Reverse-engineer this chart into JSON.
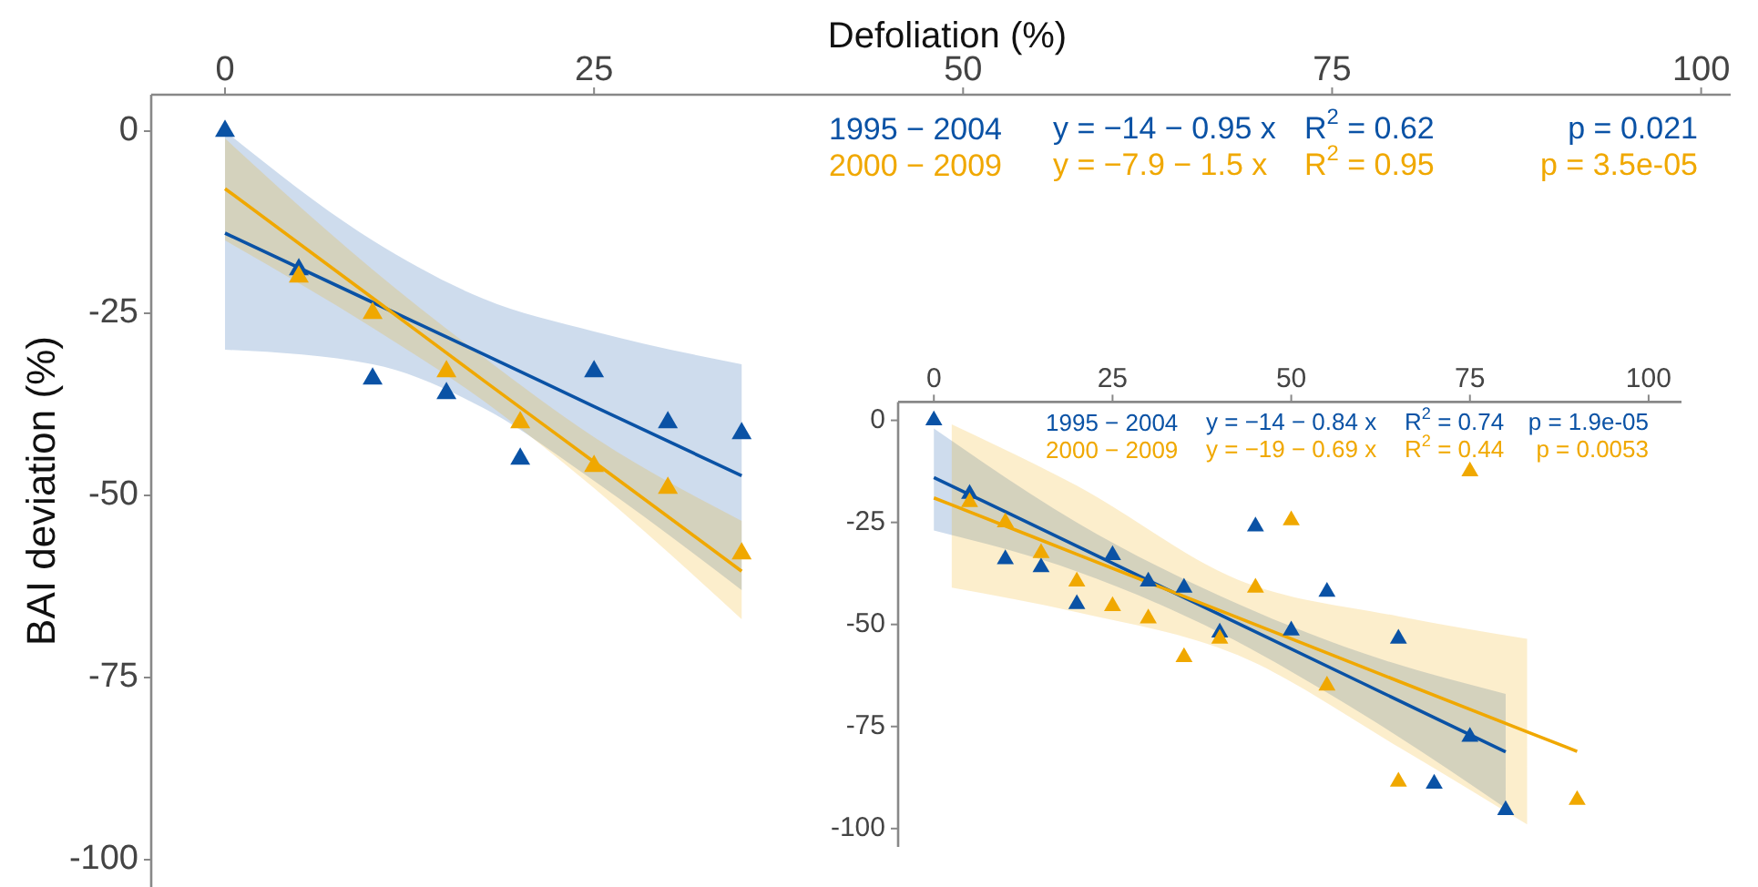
{
  "chart_data": [
    {
      "type": "scatter",
      "xlabel": "Defoliation (%)",
      "ylabel": "BAI deviation (%)",
      "xlim": [
        -5,
        102
      ],
      "xticks": [
        0,
        25,
        50,
        75,
        100
      ],
      "ylim": [
        -104,
        5
      ],
      "yticks": [
        0,
        -25,
        -50,
        -75,
        -100
      ],
      "grid": false,
      "series": [
        {
          "name": "1995 − 2004",
          "marker": "triangle",
          "color": "#0a52a5",
          "x": [
            0,
            5,
            10,
            15,
            20,
            25,
            30,
            35
          ],
          "values": [
            0,
            -19,
            -34,
            -36,
            -45,
            -33,
            -40,
            -41.5
          ]
        },
        {
          "name": "2000 − 2009",
          "marker": "triangle",
          "color": "#f0a800",
          "x": [
            5,
            10,
            15,
            20,
            25,
            30,
            35
          ],
          "values": [
            -20,
            -25,
            -33,
            -40,
            -46,
            -49,
            -58
          ]
        },
        {
          "type": "line",
          "color": "#0a52a5",
          "x": [
            0,
            10,
            17.5,
            25,
            35
          ],
          "values": [
            -14,
            -23.5,
            -30.6,
            -37.8,
            -47.3
          ],
          "lower": [
            -30,
            -32,
            -38,
            -48,
            -63
          ],
          "upper": [
            0,
            -15,
            -23,
            -27.5,
            -32
          ]
        },
        {
          "type": "line",
          "color": "#f0a800",
          "x": [
            0,
            10,
            17.5,
            25,
            35
          ],
          "values": [
            -7.9,
            -22.9,
            -34.2,
            -45.4,
            -60.4
          ],
          "lower": [
            -15,
            -27,
            -37,
            -49,
            -67
          ],
          "upper": [
            -1,
            -19,
            -31,
            -42,
            -53.5
          ]
        }
      ],
      "annotations": [
        "y = −14 − 0.95 x",
        "R$^{2}$ = 0.62",
        "p = 0.021",
        "y = −7.9 − 1.5 x",
        "R$^{2}$ = 0.95",
        "p = 3.5e-05"
      ]
    },
    {
      "type": "scatter",
      "xlim": [
        -5,
        104.6
      ],
      "xticks": [
        0,
        25,
        50,
        75,
        100
      ],
      "ylim": [
        -104.5,
        4.5
      ],
      "yticks": [
        0,
        -25,
        -50,
        -75,
        -100
      ],
      "grid": false,
      "series": [
        {
          "name": "1995 − 2004",
          "marker": "triangle",
          "color": "#0a52a5",
          "x": [
            0,
            5,
            10,
            15,
            20,
            25,
            30,
            35,
            40,
            45,
            50,
            55,
            65,
            70,
            75,
            80
          ],
          "values": [
            0,
            -18,
            -34,
            -36,
            -45,
            -33,
            -39.5,
            -41,
            -52,
            -26,
            -51.5,
            -42,
            -53.5,
            -89,
            -77.5,
            -95.5
          ]
        },
        {
          "name": "2000 − 2009",
          "marker": "triangle",
          "color": "#f0a800",
          "x": [
            5,
            10,
            15,
            20,
            25,
            30,
            35,
            40,
            45,
            50,
            55,
            65,
            75,
            90
          ],
          "values": [
            -20,
            -25,
            -32.5,
            -39.5,
            -45.5,
            -48.5,
            -58,
            -53.5,
            -41,
            -24.5,
            -65,
            -88.5,
            -12.5,
            -93
          ]
        },
        {
          "type": "line",
          "color": "#0a52a5",
          "x": [
            0,
            20,
            40,
            60,
            80
          ],
          "values": [
            -14,
            -30.8,
            -47.6,
            -64.4,
            -81.2
          ],
          "lower": [
            -27,
            -37,
            -52,
            -72,
            -95
          ],
          "upper": [
            -2,
            -25,
            -43,
            -57,
            -67
          ]
        },
        {
          "type": "line",
          "color": "#f0a800",
          "x": [
            0,
            2.5,
            20,
            42.5,
            65,
            83,
            90
          ],
          "values": [
            -19,
            -20.7,
            -32.8,
            -48.3,
            -63.9,
            -76.3,
            -81.1
          ],
          "lower": [
            null,
            -41,
            -47,
            -57.5,
            -80,
            -99,
            null
          ],
          "upper": [
            null,
            -1,
            -16,
            -39,
            -48,
            -53.5,
            null
          ]
        }
      ],
      "annotations": [
        "y = −14 − 0.84 x",
        "R$^{2}$ = 0.74",
        "p = 1.9e-05",
        "y = −19 − 0.69 x",
        "R$^{2}$ = 0.44",
        "p = 0.0053"
      ]
    }
  ]
}
